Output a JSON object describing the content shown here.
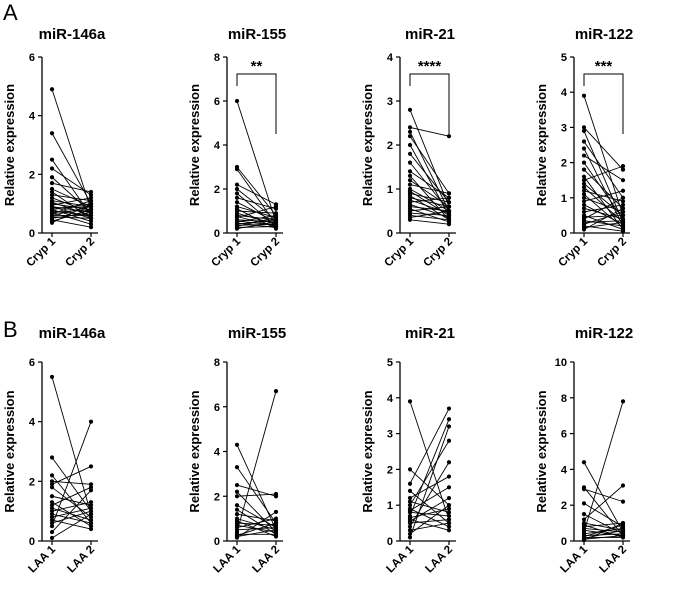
{
  "figure": {
    "panel_letters": [
      "A",
      "B"
    ]
  },
  "chart_data": [
    {
      "panel": "A",
      "type": "line",
      "title": "miR-146a",
      "xlabel": "",
      "ylabel": "Relative expression",
      "categories": [
        "Cryp 1",
        "Cryp 2"
      ],
      "ylim": [
        0,
        6
      ],
      "yticks": [
        0,
        2,
        4,
        6
      ],
      "significance": "",
      "pairs": [
        [
          4.9,
          0.8
        ],
        [
          3.4,
          1.0
        ],
        [
          2.5,
          0.6
        ],
        [
          2.2,
          1.3
        ],
        [
          1.9,
          0.7
        ],
        [
          1.7,
          1.4
        ],
        [
          1.5,
          0.9
        ],
        [
          1.4,
          0.5
        ],
        [
          1.3,
          1.1
        ],
        [
          1.2,
          0.7
        ],
        [
          1.1,
          0.9
        ],
        [
          1.05,
          0.6
        ],
        [
          1.0,
          0.8
        ],
        [
          0.95,
          1.2
        ],
        [
          0.9,
          0.5
        ],
        [
          0.9,
          0.7
        ],
        [
          0.85,
          0.9
        ],
        [
          0.8,
          0.4
        ],
        [
          0.8,
          1.0
        ],
        [
          0.75,
          0.6
        ],
        [
          0.7,
          0.8
        ],
        [
          0.7,
          0.3
        ],
        [
          0.65,
          1.1
        ],
        [
          0.6,
          0.6
        ],
        [
          0.6,
          0.9
        ],
        [
          0.55,
          0.5
        ],
        [
          0.5,
          0.7
        ],
        [
          0.45,
          0.2
        ],
        [
          0.4,
          0.8
        ],
        [
          0.35,
          1.0
        ]
      ]
    },
    {
      "panel": "A",
      "type": "line",
      "title": "miR-155",
      "xlabel": "",
      "ylabel": "Relative expression",
      "categories": [
        "Cryp 1",
        "Cryp 2"
      ],
      "ylim": [
        0,
        8
      ],
      "yticks": [
        0,
        2,
        4,
        6,
        8
      ],
      "significance": "**",
      "pairs": [
        [
          6.0,
          0.5
        ],
        [
          3.0,
          0.8
        ],
        [
          2.9,
          0.4
        ],
        [
          2.2,
          1.3
        ],
        [
          2.0,
          0.6
        ],
        [
          1.8,
          0.3
        ],
        [
          1.6,
          1.1
        ],
        [
          1.4,
          0.5
        ],
        [
          1.2,
          0.7
        ],
        [
          1.1,
          0.2
        ],
        [
          1.0,
          0.9
        ],
        [
          0.9,
          0.4
        ],
        [
          0.8,
          0.6
        ],
        [
          0.75,
          0.3
        ],
        [
          0.7,
          1.2
        ],
        [
          0.6,
          0.5
        ],
        [
          0.55,
          0.35
        ],
        [
          0.5,
          0.8
        ],
        [
          0.45,
          0.25
        ],
        [
          0.4,
          0.6
        ],
        [
          0.35,
          0.4
        ],
        [
          0.3,
          0.7
        ],
        [
          0.25,
          0.3
        ],
        [
          0.2,
          0.5
        ]
      ]
    },
    {
      "panel": "A",
      "type": "line",
      "title": "miR-21",
      "xlabel": "",
      "ylabel": "Relative expression",
      "categories": [
        "Cryp 1",
        "Cryp 2"
      ],
      "ylim": [
        0,
        4
      ],
      "yticks": [
        0,
        1,
        2,
        3,
        4
      ],
      "significance": "****",
      "pairs": [
        [
          2.8,
          0.6
        ],
        [
          2.4,
          2.2
        ],
        [
          2.3,
          0.5
        ],
        [
          2.2,
          0.9
        ],
        [
          2.0,
          0.4
        ],
        [
          1.8,
          0.7
        ],
        [
          1.6,
          0.5
        ],
        [
          1.4,
          0.8
        ],
        [
          1.3,
          0.3
        ],
        [
          1.2,
          0.6
        ],
        [
          1.1,
          0.9
        ],
        [
          1.0,
          0.5
        ],
        [
          0.95,
          0.4
        ],
        [
          0.9,
          0.7
        ],
        [
          0.85,
          0.3
        ],
        [
          0.8,
          0.6
        ],
        [
          0.75,
          0.45
        ],
        [
          0.7,
          0.8
        ],
        [
          0.65,
          0.35
        ],
        [
          0.6,
          0.5
        ],
        [
          0.55,
          0.25
        ],
        [
          0.5,
          0.6
        ],
        [
          0.45,
          0.4
        ],
        [
          0.4,
          0.3
        ],
        [
          0.35,
          0.5
        ],
        [
          0.3,
          0.2
        ]
      ]
    },
    {
      "panel": "A",
      "type": "line",
      "title": "miR-122",
      "xlabel": "",
      "ylabel": "Relative expression",
      "categories": [
        "Cryp 1",
        "Cryp 2"
      ],
      "ylim": [
        0,
        5
      ],
      "yticks": [
        0,
        1,
        2,
        3,
        4,
        5
      ],
      "significance": "***",
      "pairs": [
        [
          3.9,
          0.5
        ],
        [
          3.0,
          1.8
        ],
        [
          2.9,
          0.3
        ],
        [
          2.6,
          1.0
        ],
        [
          2.4,
          0.2
        ],
        [
          2.2,
          1.5
        ],
        [
          2.0,
          0.4
        ],
        [
          1.8,
          0.7
        ],
        [
          1.6,
          0.1
        ],
        [
          1.5,
          1.9
        ],
        [
          1.4,
          0.5
        ],
        [
          1.3,
          0.3
        ],
        [
          1.2,
          0.9
        ],
        [
          1.1,
          0.15
        ],
        [
          1.0,
          0.6
        ],
        [
          0.9,
          1.2
        ],
        [
          0.8,
          0.25
        ],
        [
          0.7,
          0.4
        ],
        [
          0.6,
          0.8
        ],
        [
          0.5,
          0.1
        ],
        [
          0.45,
          0.5
        ],
        [
          0.4,
          1.0
        ],
        [
          0.35,
          0.2
        ],
        [
          0.3,
          0.35
        ],
        [
          0.25,
          0.6
        ],
        [
          0.2,
          0.05
        ],
        [
          0.15,
          0.3
        ],
        [
          0.1,
          0.7
        ]
      ]
    },
    {
      "panel": "B",
      "type": "line",
      "title": "miR-146a",
      "xlabel": "",
      "ylabel": "Relative expression",
      "categories": [
        "LAA 1",
        "LAA 2"
      ],
      "ylim": [
        0,
        6
      ],
      "yticks": [
        0,
        2,
        4,
        6
      ],
      "significance": "",
      "pairs": [
        [
          5.5,
          0.9
        ],
        [
          2.8,
          1.0
        ],
        [
          2.2,
          0.6
        ],
        [
          2.0,
          1.9
        ],
        [
          1.9,
          2.5
        ],
        [
          1.8,
          0.8
        ],
        [
          1.5,
          1.2
        ],
        [
          1.3,
          0.5
        ],
        [
          1.2,
          1.8
        ],
        [
          1.1,
          0.7
        ],
        [
          1.0,
          1.3
        ],
        [
          0.9,
          0.6
        ],
        [
          0.8,
          1.1
        ],
        [
          0.7,
          0.4
        ],
        [
          0.5,
          4.0
        ],
        [
          0.3,
          1.7
        ],
        [
          0.1,
          0.9
        ],
        [
          0.6,
          1.0
        ]
      ]
    },
    {
      "panel": "B",
      "type": "line",
      "title": "miR-155",
      "xlabel": "",
      "ylabel": "Relative expression",
      "categories": [
        "LAA 1",
        "LAA 2"
      ],
      "ylim": [
        0,
        8
      ],
      "yticks": [
        0,
        2,
        4,
        6,
        8
      ],
      "significance": "",
      "pairs": [
        [
          4.3,
          0.5
        ],
        [
          3.3,
          0.8
        ],
        [
          2.5,
          2.0
        ],
        [
          2.2,
          0.4
        ],
        [
          2.0,
          2.1
        ],
        [
          1.6,
          0.6
        ],
        [
          1.4,
          0.3
        ],
        [
          1.2,
          0.9
        ],
        [
          1.0,
          0.5
        ],
        [
          0.9,
          0.2
        ],
        [
          0.8,
          0.7
        ],
        [
          0.7,
          0.4
        ],
        [
          0.6,
          1.0
        ],
        [
          0.5,
          0.6
        ],
        [
          0.4,
          6.7
        ],
        [
          0.3,
          0.3
        ],
        [
          0.25,
          0.8
        ],
        [
          0.2,
          0.5
        ],
        [
          0.15,
          1.3
        ]
      ]
    },
    {
      "panel": "B",
      "type": "line",
      "title": "miR-21",
      "xlabel": "",
      "ylabel": "Relative expression",
      "categories": [
        "LAA 1",
        "LAA 2"
      ],
      "ylim": [
        0,
        5
      ],
      "yticks": [
        0,
        1,
        2,
        3,
        4,
        5
      ],
      "significance": "",
      "pairs": [
        [
          3.9,
          0.6
        ],
        [
          2.0,
          1.0
        ],
        [
          1.6,
          3.7
        ],
        [
          1.4,
          0.5
        ],
        [
          1.2,
          1.8
        ],
        [
          1.1,
          0.8
        ],
        [
          1.0,
          2.8
        ],
        [
          0.9,
          0.4
        ],
        [
          0.85,
          1.5
        ],
        [
          0.8,
          0.7
        ],
        [
          0.7,
          3.4
        ],
        [
          0.65,
          0.9
        ],
        [
          0.6,
          0.3
        ],
        [
          0.55,
          1.2
        ],
        [
          0.5,
          0.6
        ],
        [
          0.4,
          2.2
        ],
        [
          0.3,
          0.5
        ],
        [
          0.2,
          1.0
        ],
        [
          0.1,
          3.2
        ]
      ]
    },
    {
      "panel": "B",
      "type": "line",
      "title": "miR-122",
      "xlabel": "",
      "ylabel": "Relative expression",
      "categories": [
        "LAA 1",
        "LAA 2"
      ],
      "ylim": [
        0,
        10
      ],
      "yticks": [
        0,
        2,
        4,
        6,
        8,
        10
      ],
      "significance": "",
      "pairs": [
        [
          4.4,
          0.5
        ],
        [
          3.0,
          0.3
        ],
        [
          2.9,
          2.2
        ],
        [
          2.1,
          0.8
        ],
        [
          1.5,
          0.4
        ],
        [
          1.2,
          3.1
        ],
        [
          1.0,
          0.6
        ],
        [
          0.9,
          0.2
        ],
        [
          0.8,
          1.0
        ],
        [
          0.7,
          0.5
        ],
        [
          0.6,
          0.3
        ],
        [
          0.5,
          7.8
        ],
        [
          0.4,
          0.7
        ],
        [
          0.3,
          0.4
        ],
        [
          0.25,
          0.9
        ],
        [
          0.2,
          0.2
        ],
        [
          0.15,
          0.6
        ],
        [
          0.1,
          0.3
        ],
        [
          0.05,
          1.0
        ]
      ]
    }
  ]
}
